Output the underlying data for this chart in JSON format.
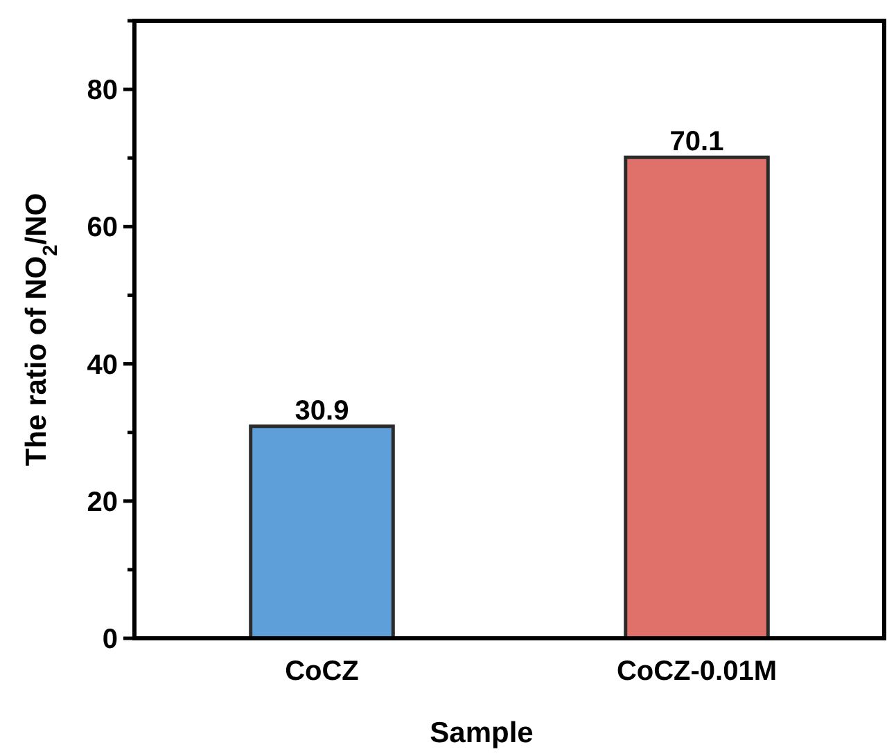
{
  "chart_data": {
    "type": "bar",
    "xlabel": "Sample",
    "ylabel": "The ratio of NO$_{2}$/NO",
    "categories": [
      "CoCZ",
      "CoCZ-0.01M"
    ],
    "values": [
      30.9,
      70.1
    ],
    "colors": [
      "#5f9fd9",
      "#e0716a"
    ],
    "data_labels": true,
    "ylim": [
      0,
      90
    ],
    "yticks": [
      0,
      {
        "value": 10,
        "label": null
      },
      20,
      {
        "value": 30,
        "label": null
      },
      40,
      {
        "value": 50,
        "label": null
      },
      60,
      {
        "value": 70,
        "label": null
      },
      80,
      {
        "value": 90,
        "label": null
      }
    ],
    "grid": false
  }
}
